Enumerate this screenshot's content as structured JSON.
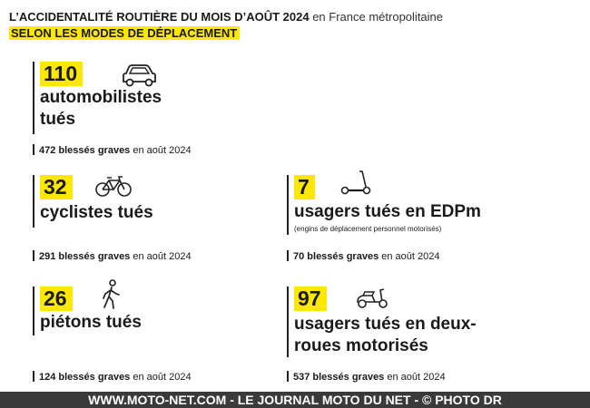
{
  "header": {
    "title_strong": "L’ACCIDENTALITÉ ROUTIÈRE DU MOIS D’AOÛT 2024",
    "title_light": "en France métropolitaine",
    "subtitle": "SELON LES MODES DE DÉPLACEMENT"
  },
  "cards": {
    "cars": {
      "count": "110",
      "label_line1": "automobilistes",
      "label_line2": "tués",
      "icon": "car-icon",
      "injured_strong": "472 blessés graves",
      "injured_rest": "en août 2024"
    },
    "cyclists": {
      "count": "32",
      "label_line1": "cyclistes tués",
      "icon": "bicycle-icon",
      "injured_strong": "291 blessés graves",
      "injured_rest": "en août 2024"
    },
    "edpm": {
      "count": "7",
      "label_line1": "usagers tués en EDPm",
      "note": "(engins de déplacement personnel motorisés)",
      "icon": "scooter-icon",
      "injured_strong": "70 blessés graves",
      "injured_rest": "en août 2024"
    },
    "pedestrians": {
      "count": "26",
      "label_line1": "piétons tués",
      "icon": "pedestrian-icon",
      "injured_strong": "124 blessés graves",
      "injured_rest": "en août 2024"
    },
    "motorcyclists": {
      "count": "97",
      "label_line1": "usagers tués en deux-",
      "label_line2": "roues motorisés",
      "icon": "motor-scooter-icon",
      "injured_strong": "537 blessés graves",
      "injured_rest": "en août 2024"
    }
  },
  "footer": {
    "text": "WWW.MOTO-NET.COM - LE JOURNAL MOTO DU NET - © PHOTO DR"
  },
  "colors": {
    "accent": "#ffe800",
    "footer_bg": "#3a3a3a",
    "text": "#1a1a1a"
  }
}
